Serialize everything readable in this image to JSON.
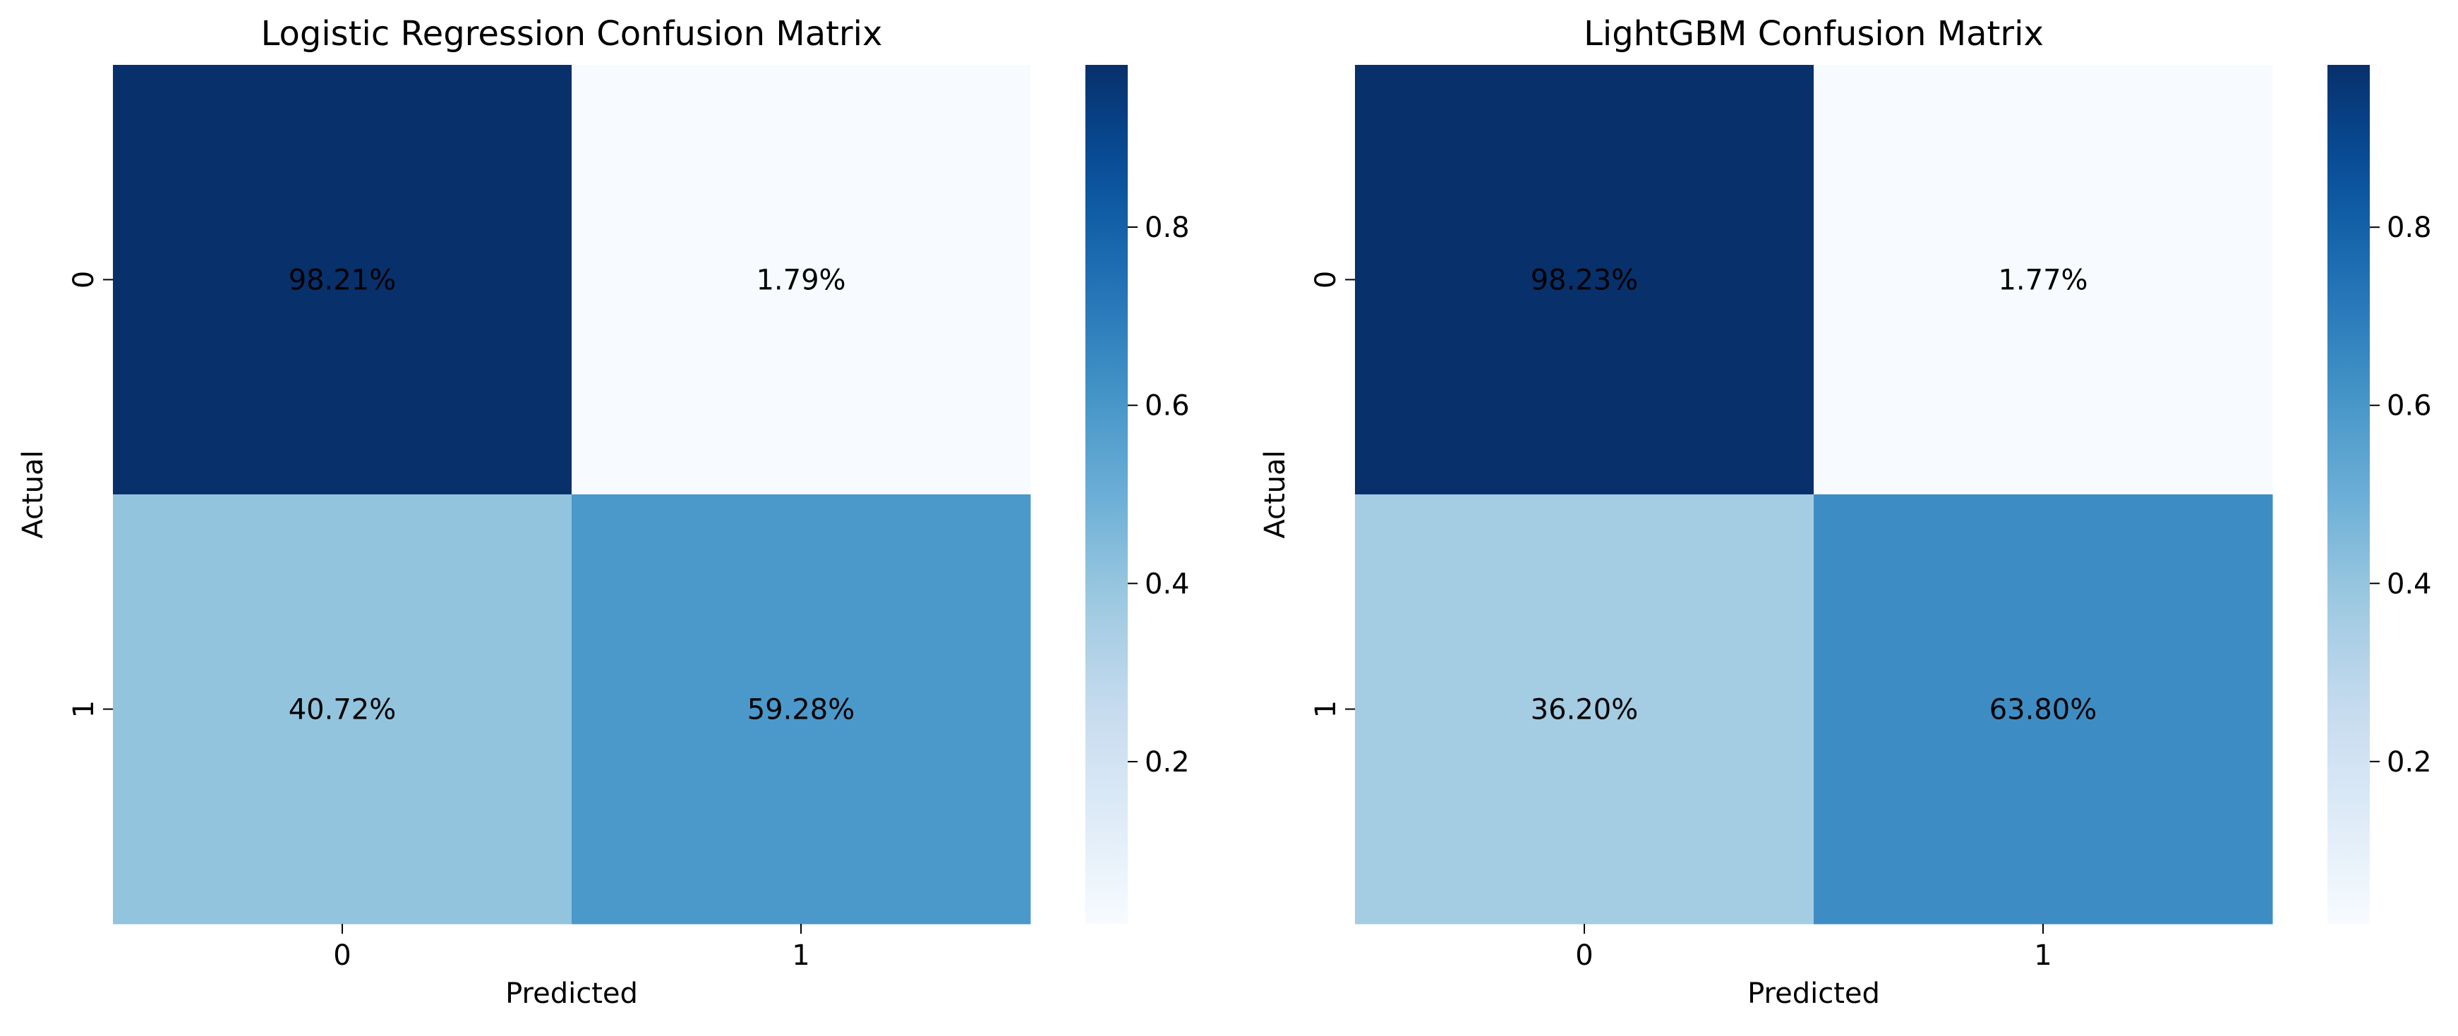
{
  "chart_data": [
    {
      "type": "heatmap",
      "title": "Logistic Regression Confusion Matrix",
      "xlabel": "Predicted",
      "ylabel": "Actual",
      "x_categories": [
        "0",
        "1"
      ],
      "y_categories": [
        "0",
        "1"
      ],
      "values": [
        [
          0.9821,
          0.0179
        ],
        [
          0.4072,
          0.5928
        ]
      ],
      "annotations": [
        [
          "98.21%",
          "1.79%"
        ],
        [
          "40.72%",
          "59.28%"
        ]
      ],
      "colormap": "Blues",
      "colorbar": {
        "range": [
          0.0179,
          0.9821
        ],
        "ticks": [
          0.2,
          0.4,
          0.6,
          0.8
        ],
        "tick_labels": [
          "0.2",
          "0.4",
          "0.6",
          "0.8"
        ]
      }
    },
    {
      "type": "heatmap",
      "title": "LightGBM Confusion Matrix",
      "xlabel": "Predicted",
      "ylabel": "Actual",
      "x_categories": [
        "0",
        "1"
      ],
      "y_categories": [
        "0",
        "1"
      ],
      "values": [
        [
          0.9823,
          0.0177
        ],
        [
          0.362,
          0.638
        ]
      ],
      "annotations": [
        [
          "98.23%",
          "1.77%"
        ],
        [
          "36.20%",
          "63.80%"
        ]
      ],
      "colormap": "Blues",
      "colorbar": {
        "range": [
          0.0177,
          0.9823
        ],
        "ticks": [
          0.2,
          0.4,
          0.6,
          0.8
        ],
        "tick_labels": [
          "0.2",
          "0.4",
          "0.6",
          "0.8"
        ]
      }
    }
  ]
}
